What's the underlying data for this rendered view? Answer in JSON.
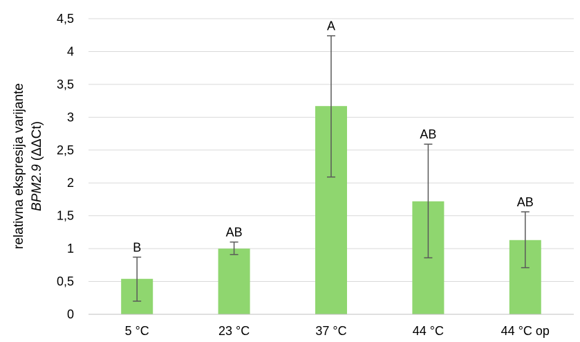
{
  "chart_data": {
    "type": "bar",
    "categories": [
      "5 °C",
      "23 °C",
      "37 °C",
      "44 °C",
      "44 °C op"
    ],
    "series": [
      {
        "values": [
          0.54,
          1.0,
          3.17,
          1.72,
          1.13
        ],
        "error_low": [
          0.2,
          0.91,
          2.09,
          0.86,
          0.71
        ],
        "error_high": [
          0.87,
          1.1,
          4.24,
          2.59,
          1.56
        ],
        "significance": [
          "B",
          "AB",
          "A",
          "AB",
          "AB"
        ],
        "color": "#8fd66f"
      }
    ],
    "ylabel_line1": "relativna ekspresija varijante",
    "ylabel_gene": "BPM2.9",
    "ylabel_unit": " (ΔΔCt)",
    "yticks": [
      "0",
      "0,5",
      "1",
      "1,5",
      "2",
      "2,5",
      "3",
      "3,5",
      "4",
      "4,5"
    ],
    "ylim": [
      0,
      4.5
    ],
    "grid": true,
    "colors": {
      "bar": "#8fd66f",
      "grid": "#d9d9d9",
      "error": "#595959",
      "axis": "#bfbfbf"
    }
  }
}
